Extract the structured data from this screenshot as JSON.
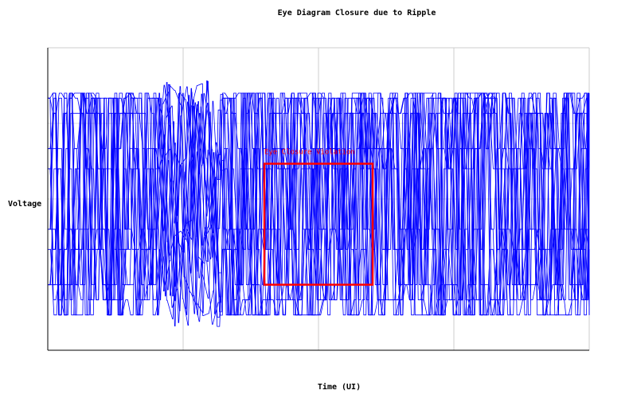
{
  "chart_data": {
    "type": "line",
    "title": "Eye Diagram Closure due to Ripple",
    "xlabel": "Time (UI)",
    "ylabel": "Voltage",
    "grid": true,
    "legend": "none",
    "x_tick_labels": [],
    "y_tick_labels": [],
    "xlim": [
      0,
      4
    ],
    "ylim": [
      -1.5,
      1.5
    ],
    "x_gridlines": [
      1,
      2,
      3
    ],
    "y_gridlines": [
      0,
      0.75
    ],
    "trace_color": "#0000ff",
    "series": [
      {
        "levels": [
          -1.15,
          -1.0,
          -0.85,
          -0.5,
          -0.3,
          0.3,
          0.5,
          0.85,
          1.0,
          1.05
        ],
        "transition_period": 0.04,
        "x_start": 0.0,
        "x_end": 4.0,
        "dense_region": [
          0.8,
          1.25
        ]
      }
    ],
    "annotations": [
      {
        "text": "Eye Closure Violation",
        "color": "#ff0000",
        "x0": 1.6,
        "x1": 2.4,
        "y0": -0.85,
        "y1": 0.35
      }
    ]
  }
}
